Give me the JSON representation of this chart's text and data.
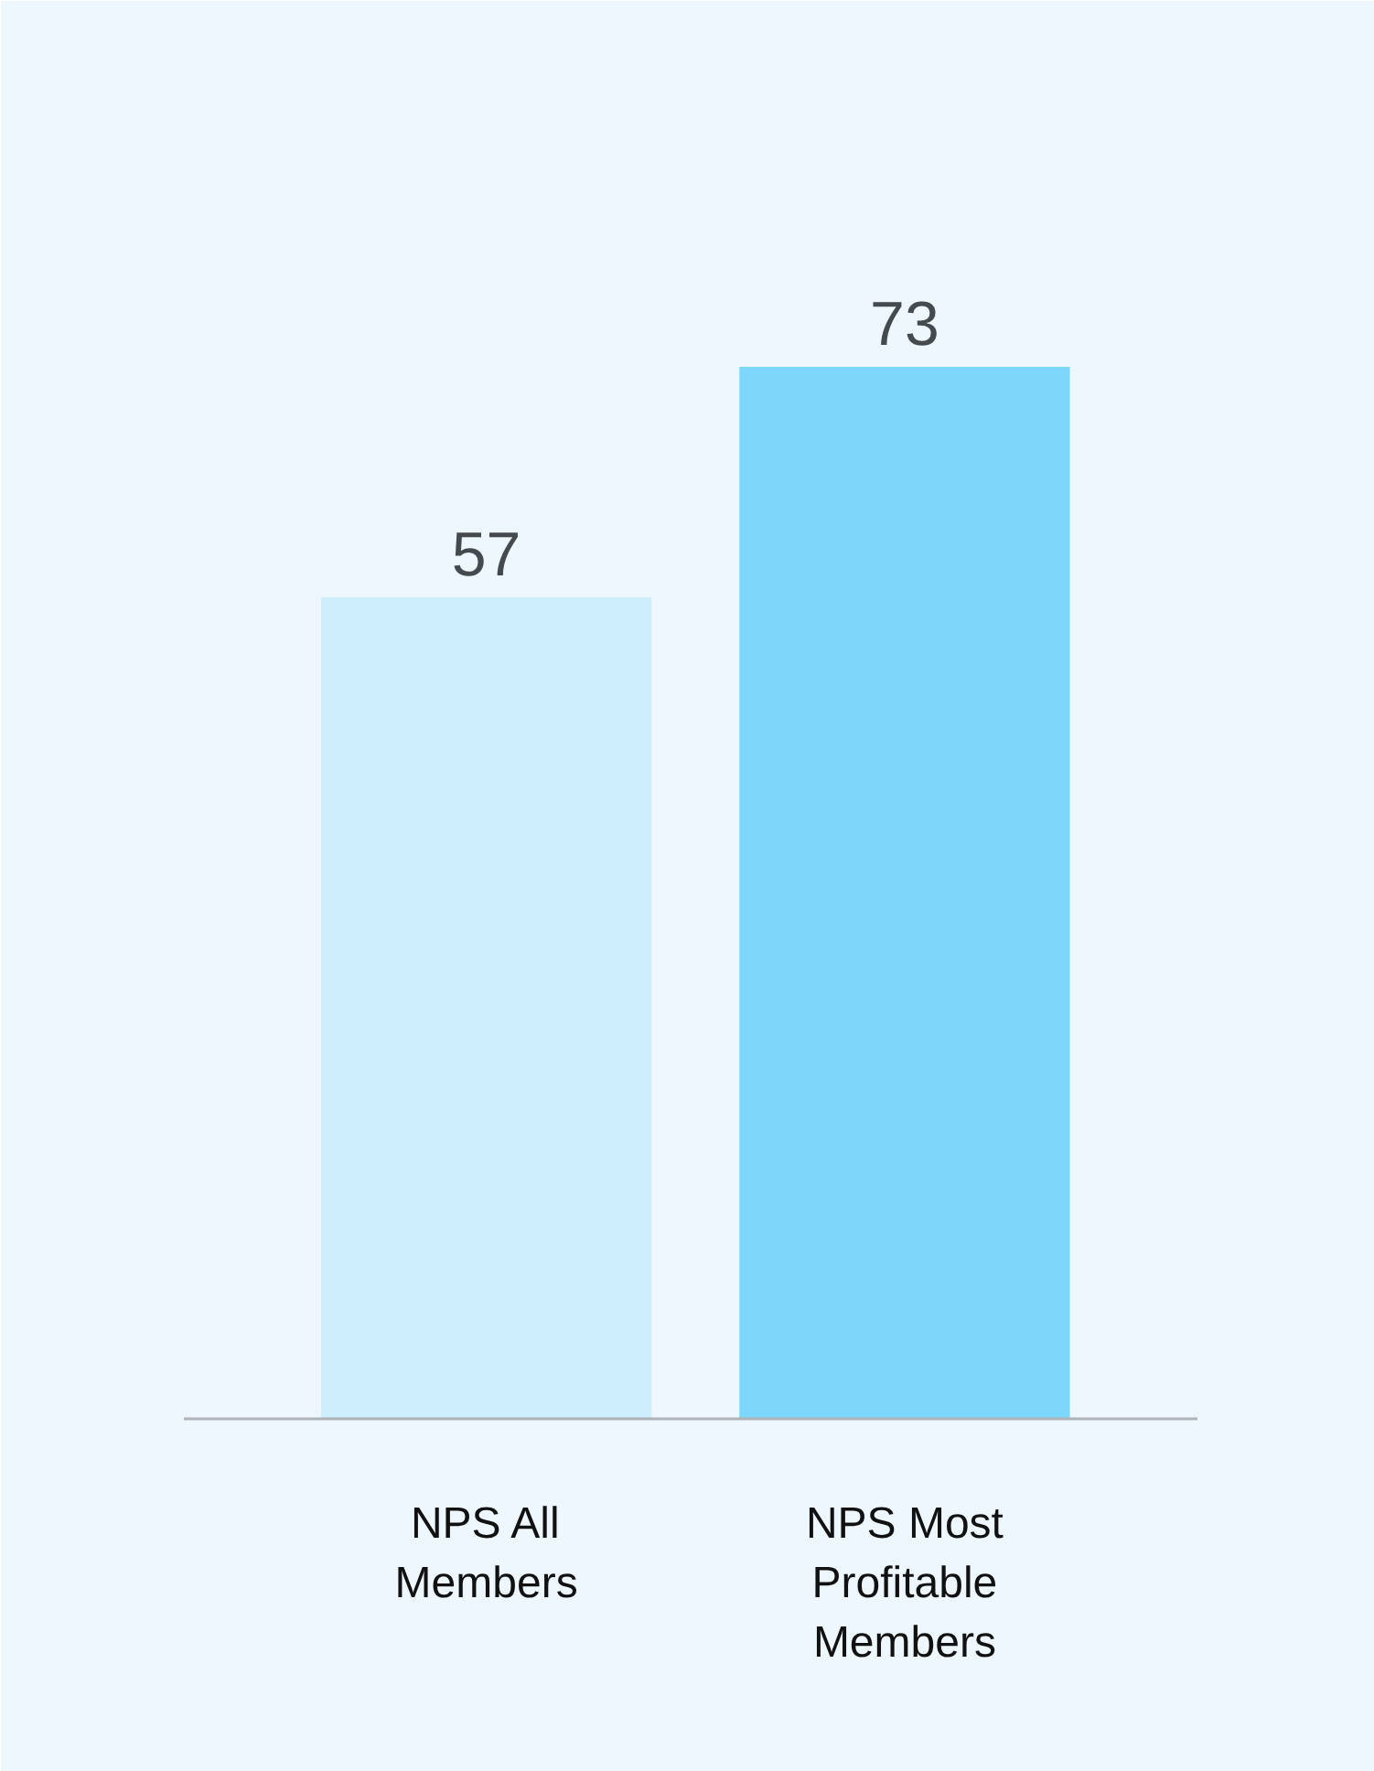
{
  "chart_data": {
    "type": "bar",
    "categories": [
      "NPS All Members",
      "NPS Most Profitable Members"
    ],
    "values": [
      57,
      73
    ],
    "colors": [
      "#cdeefc",
      "#7dd7fa"
    ],
    "data_labels": true
  }
}
